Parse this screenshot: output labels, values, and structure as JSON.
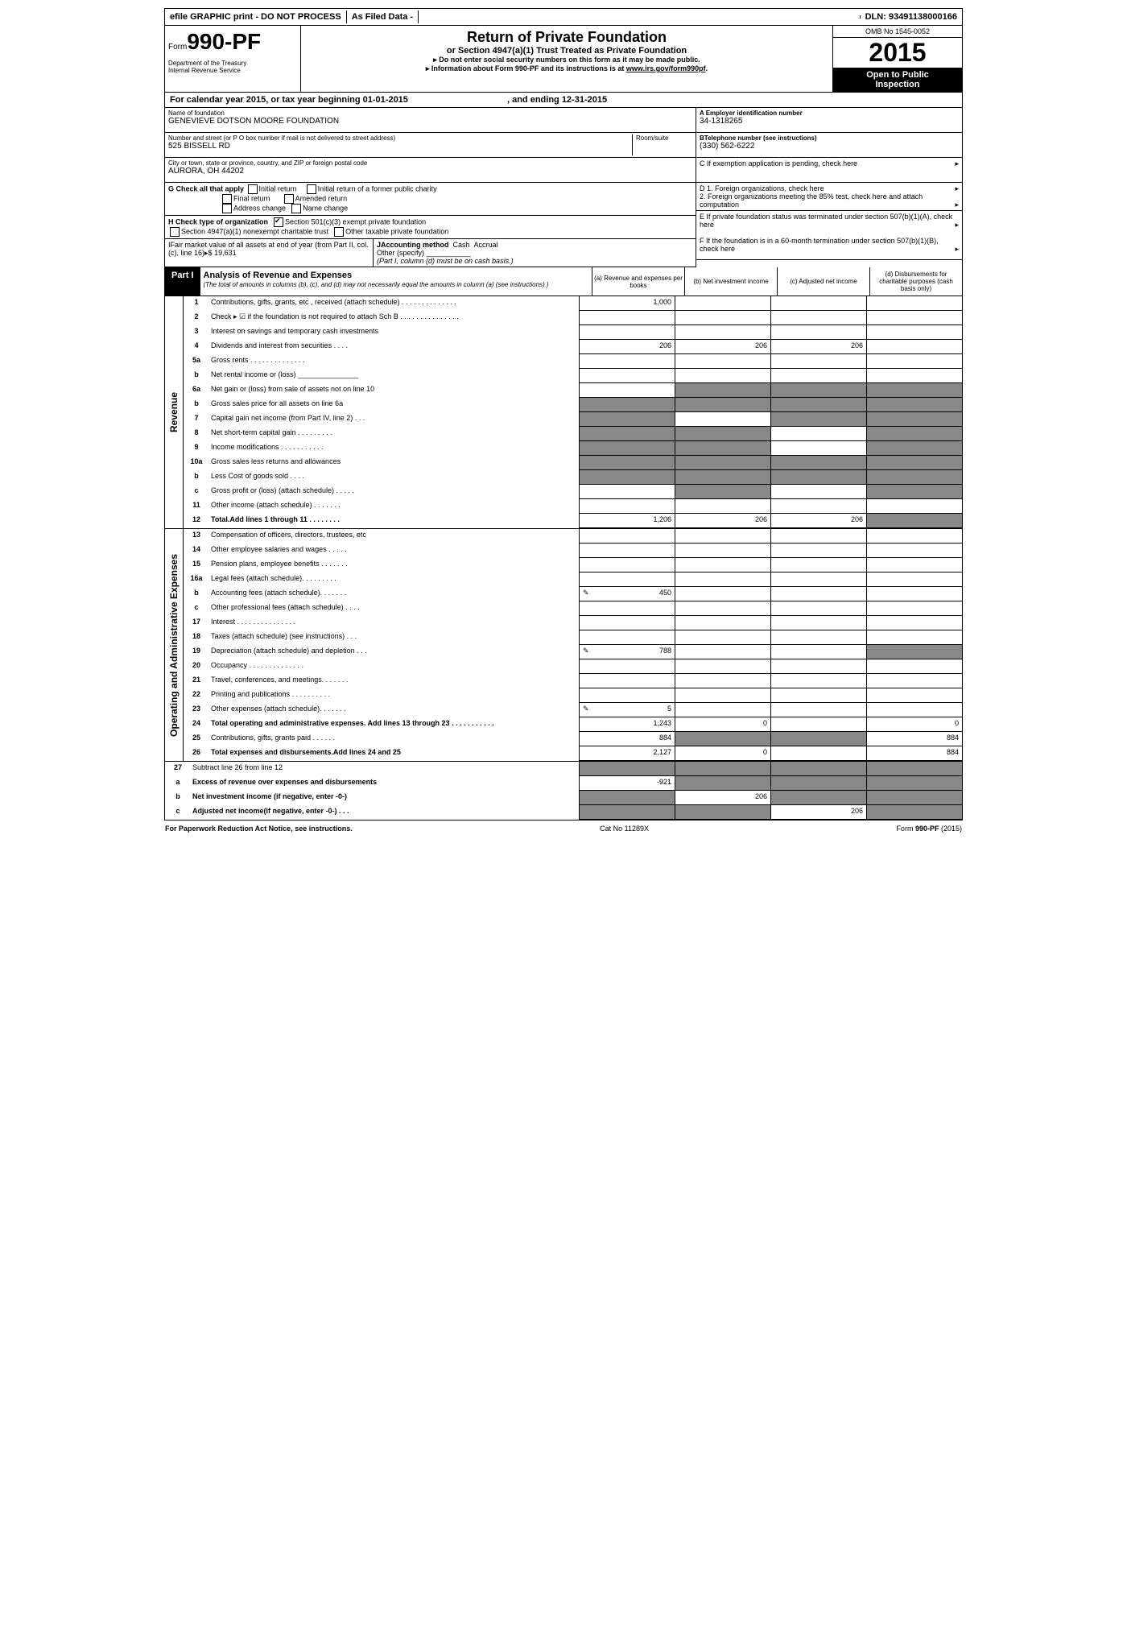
{
  "topbar": {
    "efile": "efile GRAPHIC print - DO NOT PROCESS",
    "asfiled": "As Filed Data -",
    "dln_label": "DLN:",
    "dln": "93491138000166"
  },
  "header": {
    "form_pre": "Form",
    "form_no": "990-PF",
    "dept1": "Department of the Treasury",
    "dept2": "Internal Revenue Service",
    "title": "Return of Private Foundation",
    "sub": "or Section 4947(a)(1) Trust Treated as Private Foundation",
    "sub2a": "▸ Do not enter social security numbers on this form as it may be made public.",
    "sub2b": "▸ Information about Form 990-PF and its instructions is at ",
    "sub2b_link": "www.irs.gov/form990pf",
    "omb": "OMB No  1545-0052",
    "year": "2015",
    "open1": "Open to Public",
    "open2": "Inspection"
  },
  "cal": {
    "text": "For calendar year 2015, or tax year beginning 01-01-2015",
    "mid": ", and ending 12-31-2015"
  },
  "info_left": {
    "name_lbl": "Name of foundation",
    "name": "GENEVIEVE DOTSON MOORE FOUNDATION",
    "addr_lbl": "Number and street (or P O  box number if mail is not delivered to street address)",
    "room_lbl": "Room/suite",
    "addr": "525 BISSELL RD",
    "city_lbl": "City or town, state or province, country, and ZIP or foreign postal code",
    "city": "AURORA, OH  44202",
    "g": "G Check all that apply",
    "g_opts": [
      "Initial return",
      "Initial return of a former public charity",
      "Final return",
      "Amended return",
      "Address change",
      "Name change"
    ],
    "h": "H Check type of organization",
    "h1": "Section 501(c)(3) exempt private foundation",
    "h2": "Section 4947(a)(1) nonexempt charitable trust",
    "h3": "Other taxable private foundation",
    "i": "IFair market value of all assets at end of year (from Part II, col. (c), line 16)▸$",
    "i_val": "19,631",
    "j": "JAccounting method",
    "j_cash": "Cash",
    "j_accrual": "Accrual",
    "j_other": "Other (specify)",
    "j_note": "(Part I, column (d) must be on cash basis.)"
  },
  "info_right": {
    "a_lbl": "A Employer identification number",
    "a": "34-1318265",
    "b_lbl": "BTelephone number (see instructions)",
    "b": "(330) 562-6222",
    "c": "C  If exemption application is pending, check here",
    "d1": "D 1. Foreign organizations, check here",
    "d2": "2. Foreign organizations meeting the 85% test, check here and attach computation",
    "e": "E  If private foundation status was terminated under section 507(b)(1)(A), check here",
    "f": "F  If the foundation is in a 60-month termination under section 507(b)(1)(B), check here"
  },
  "part1": {
    "label": "Part I",
    "title": "Analysis of Revenue and Expenses",
    "note": "(The total of amounts in columns (b), (c), and (d) may not necessarily equal the amounts in column (a) (see instructions) )",
    "cols": {
      "a": "(a) Revenue and expenses per books",
      "b": "(b) Net investment income",
      "c": "(c) Adjusted net income",
      "d": "(d) Disbursements for charitable purposes (cash basis only)"
    }
  },
  "side_rev": "Revenue",
  "side_exp": "Operating and Administrative Expenses",
  "rows": [
    {
      "n": "1",
      "d": "Contributions, gifts, grants, etc , received (attach schedule)   .   .   .   .   .   .   .   .   .   .   .   .   .   .   ",
      "a": "1,000"
    },
    {
      "n": "2",
      "d": "Check ▸ ☑ if the foundation is not required to attach Sch B   .   .   .   .   .   .   .   .   .   .   .   .   .   .   ."
    },
    {
      "n": "3",
      "d": "Interest on savings and temporary cash investments"
    },
    {
      "n": "4",
      "d": "Dividends and interest from securities   .   .   .   .",
      "a": "206",
      "b": "206",
      "c": "206"
    },
    {
      "n": "5a",
      "d": "Gross rents .   .   .   .   .   .   .   .   .   .   .   .   .   ."
    },
    {
      "n": "b",
      "d": "Net rental income or (loss) _______________"
    },
    {
      "n": "6a",
      "d": "Net gain or (loss) from sale of assets not on line 10",
      "shade_bcd": true
    },
    {
      "n": "b",
      "d": "Gross sales price for all assets on line 6a",
      "shade_all": true
    },
    {
      "n": "7",
      "d": "Capital gain net income (from Part IV, line 2)  .   .   .",
      "shade_a": true,
      "shade_cd": true
    },
    {
      "n": "8",
      "d": "Net short-term capital gain .   .   .   .   .   .   .   .   .",
      "shade_ab": true,
      "shade_d": true
    },
    {
      "n": "9",
      "d": "Income modifications .   .   .   .   .   .   .   .   .   .   .",
      "shade_ab": true,
      "shade_d": true
    },
    {
      "n": "10a",
      "d": "Gross sales less returns and allowances",
      "shade_all": true
    },
    {
      "n": "b",
      "d": "Less  Cost of goods sold .   .   .   .",
      "shade_all": true
    },
    {
      "n": "c",
      "d": "Gross profit or (loss) (attach schedule) .   .   .   .   .",
      "shade_b": true,
      "shade_d": true
    },
    {
      "n": "11",
      "d": "Other income (attach schedule)   .   .   .   .   .   .   ."
    },
    {
      "n": "12",
      "d": "Total.Add lines 1 through 11   .   .   .   .   .   .   .   .",
      "b_": true,
      "a": "1,206",
      "b": "206",
      "c": "206",
      "shade_d": true
    }
  ],
  "rows2": [
    {
      "n": "13",
      "d": "Compensation of officers, directors, trustees, etc"
    },
    {
      "n": "14",
      "d": "Other employee salaries and wages  .   .   .   .   ."
    },
    {
      "n": "15",
      "d": "Pension plans, employee benefits .   .   .   .   .   .   ."
    },
    {
      "n": "16a",
      "d": "Legal fees (attach schedule).   .   .   .   .   .   .   .   ."
    },
    {
      "n": "b",
      "d": "Accounting fees (attach schedule).   .   .   .   .   .   .",
      "a": "450",
      "icon_a": true
    },
    {
      "n": "c",
      "d": "Other professional fees (attach schedule)  .   .   .   ."
    },
    {
      "n": "17",
      "d": "Interest  .   .   .   .   .   .   .   .   .   .   .   .   .   .   ."
    },
    {
      "n": "18",
      "d": "Taxes (attach schedule) (see instructions)   .   .   ."
    },
    {
      "n": "19",
      "d": "Depreciation (attach schedule) and depletion  .   .   .",
      "a": "788",
      "icon_a": true,
      "shade_d": true
    },
    {
      "n": "20",
      "d": "Occupancy .   .   .   .   .   .   .   .   .   .   .   .   .   ."
    },
    {
      "n": "21",
      "d": "Travel, conferences, and meetings.   .   .   .   .   .   ."
    },
    {
      "n": "22",
      "d": "Printing and publications .   .   .   .   .   .   .   .   .   ."
    },
    {
      "n": "23",
      "d": "Other expenses (attach schedule).   .   .   .   .   .   .",
      "a": "5",
      "icon_a": true
    },
    {
      "n": "24",
      "d": "Total operating and administrative expenses. Add lines 13 through 23 .   .   .   .   .   .   .   .   .   .   .",
      "b_": true,
      "a": "1,243",
      "b": "0",
      "d_": "0"
    },
    {
      "n": "25",
      "d": "Contributions, gifts, grants paid    .   .   .   .   .   .",
      "a": "884",
      "d_": "884",
      "shade_bc": true
    },
    {
      "n": "26",
      "d": "Total expenses and disbursements.Add lines 24 and 25",
      "b_": true,
      "a": "2,127",
      "b": "0",
      "d_": "884"
    }
  ],
  "rows3": [
    {
      "n": "27",
      "d": "Subtract line 26 from line 12",
      "shade_all": true
    },
    {
      "n": "a",
      "d": "Excess of revenue over expenses and disbursements",
      "b_": true,
      "a": "-921",
      "shade_bcd": true
    },
    {
      "n": "b",
      "d": "Net investment income (if negative, enter -0-)",
      "b_": true,
      "b": "206",
      "shade_a": true,
      "shade_cd": true
    },
    {
      "n": "c",
      "d": "Adjusted net income(if negative, enter -0-)   .   .   .",
      "b_": true,
      "c": "206",
      "shade_ab": true,
      "shade_d": true
    }
  ],
  "footer": {
    "left": "For Paperwork Reduction Act Notice, see instructions.",
    "mid": "Cat  No  11289X",
    "right": "Form 990-PF (2015)"
  }
}
